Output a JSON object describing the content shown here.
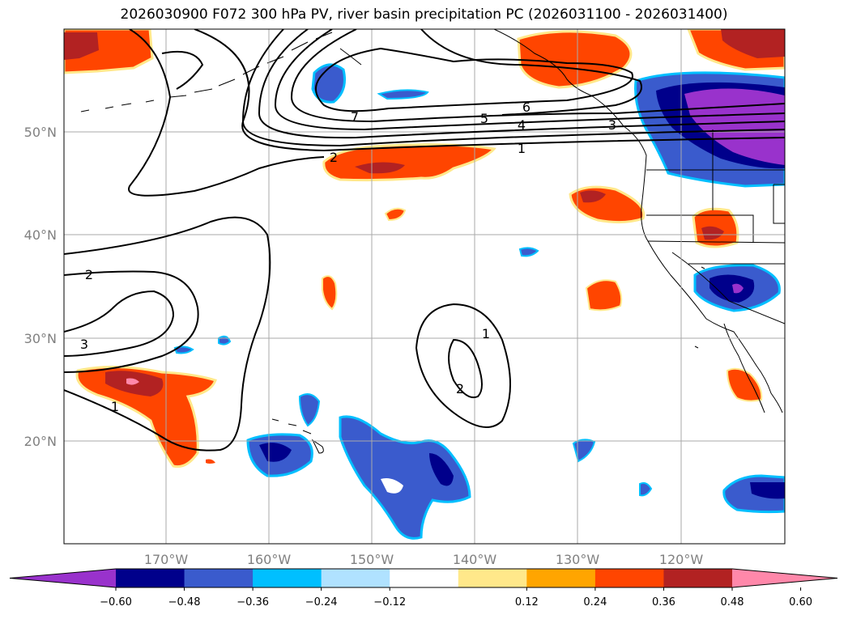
{
  "title": "2026030900 F072 300 hPa PV, river basin precipitation PC (2026031100 - 2026031400)",
  "latitude_labels": [
    "50°N",
    "40°N",
    "30°N",
    "20°N"
  ],
  "longitude_labels": [
    "170°W",
    "160°W",
    "150°W",
    "140°W",
    "130°W",
    "120°W"
  ],
  "pv_contour_labels": [
    "1",
    "2",
    "3",
    "4",
    "5",
    "6",
    "7",
    "2",
    "3",
    "1",
    "1",
    "2"
  ],
  "colorbar": {
    "tick_labels": [
      "−0.60",
      "−0.48",
      "−0.36",
      "−0.24",
      "−0.12",
      "0.12",
      "0.24",
      "0.36",
      "0.48",
      "0.60"
    ],
    "colors": [
      "#9932cc",
      "#00008b",
      "#3a5bcd",
      "#00bfff",
      "#b0e2ff",
      "#ffffff",
      "#ffe88a",
      "#ffa500",
      "#ff4500",
      "#b22222",
      "#ff88aa"
    ]
  }
}
